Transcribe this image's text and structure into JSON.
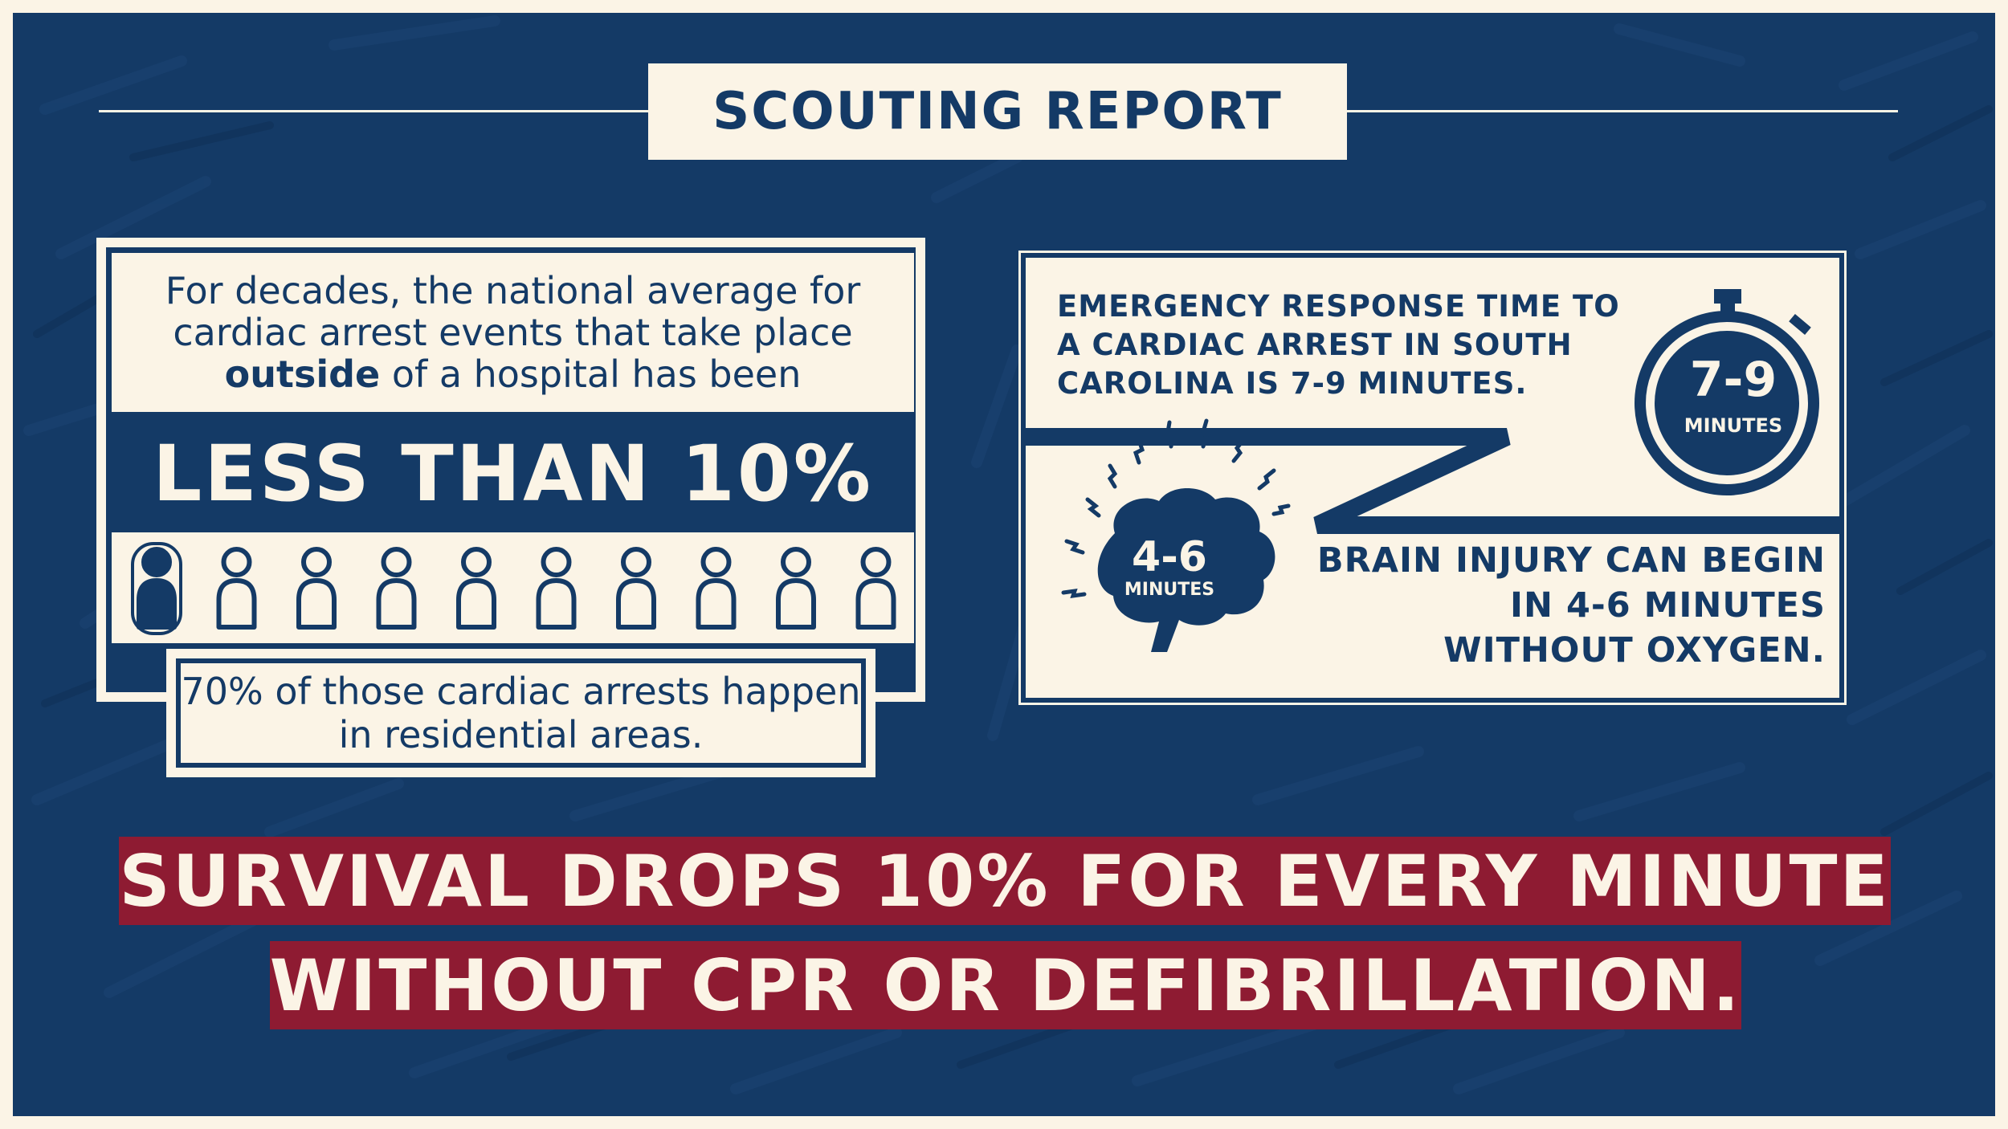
{
  "header": {
    "title": "SCOUTING REPORT"
  },
  "left_card": {
    "intro_before": "For decades, the national average for cardiac arrest events that take place ",
    "intro_emphasis": "outside",
    "intro_after": " of a hospital has been",
    "big_stat": "LESS THAN 10%",
    "people": {
      "total": 10,
      "highlighted": 1
    },
    "note": "70% of those cardiac arrests happen in residential areas."
  },
  "right_card": {
    "response_text": "EMERGENCY RESPONSE TIME TO A CARDIAC ARREST IN SOUTH CAROLINA IS 7-9 MINUTES.",
    "timer_value": "7-9",
    "timer_unit": "MINUTES",
    "brain_value": "4-6",
    "brain_unit": "MINUTES",
    "brain_text": "BRAIN INJURY CAN BEGIN IN 4-6 MINUTES WITHOUT OXYGEN."
  },
  "banner": {
    "line1": "SURVIVAL DROPS 10% FOR EVERY MINUTE",
    "line2": "WITHOUT CPR OR DEFIBRILLATION."
  },
  "colors": {
    "navy": "#143a66",
    "cream": "#fbf4e6",
    "crimson": "#8e1b32"
  }
}
